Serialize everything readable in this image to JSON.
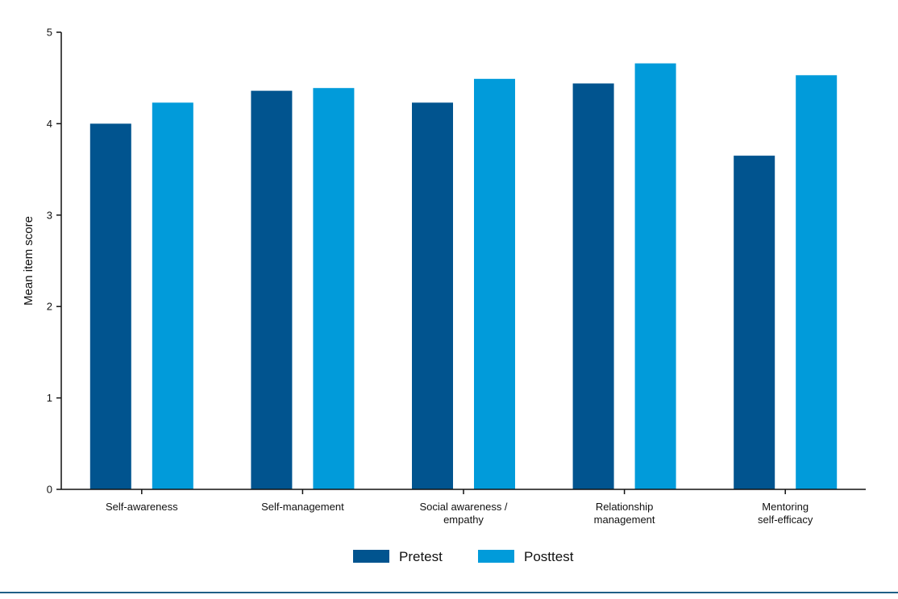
{
  "colors": {
    "pretest": "#01548F",
    "posttest": "#019BDA",
    "axis": "#111111",
    "footer_rule": "#1F5F86"
  },
  "chart_data": {
    "type": "bar",
    "categories": [
      [
        "Self-awareness"
      ],
      [
        "Self-management"
      ],
      [
        "Social awareness /",
        "empathy"
      ],
      [
        "Relationship",
        "management"
      ],
      [
        "Mentoring",
        "self-efficacy"
      ]
    ],
    "series": [
      {
        "name": "Pretest",
        "values": [
          4.0,
          4.36,
          4.23,
          4.44,
          3.65
        ]
      },
      {
        "name": "Posttest",
        "values": [
          4.23,
          4.39,
          4.49,
          4.66,
          4.53
        ]
      }
    ],
    "title": "",
    "xlabel": "",
    "ylabel": "Mean item score",
    "ylim": [
      0,
      5
    ],
    "yticks": [
      "0",
      "1",
      "2",
      "3",
      "4",
      "5"
    ],
    "grid": false,
    "legend": "bottom-center"
  }
}
